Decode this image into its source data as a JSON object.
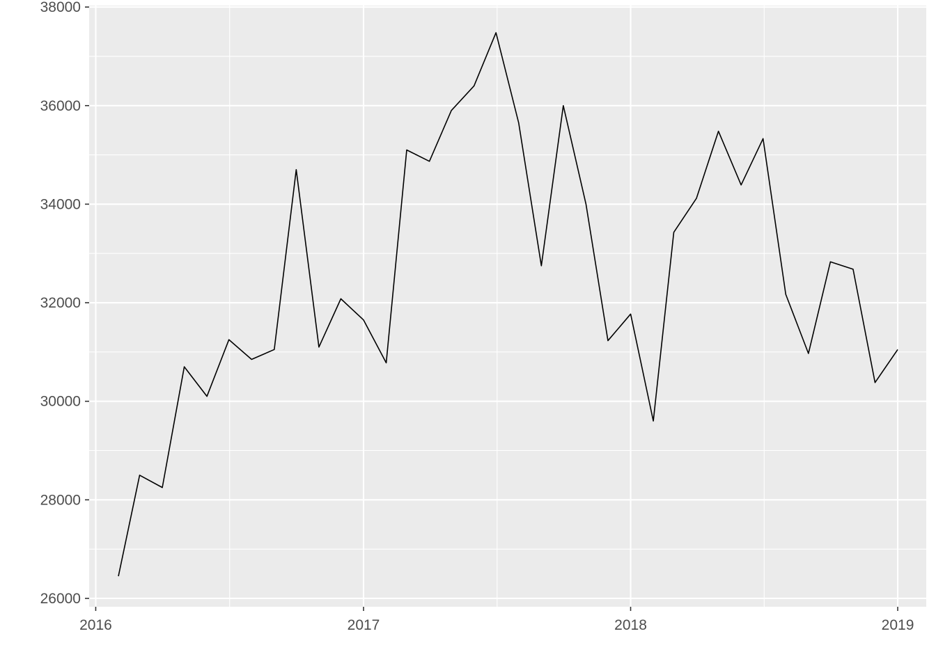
{
  "chart_data": {
    "type": "line",
    "title": "",
    "xlabel": "",
    "ylabel": "",
    "x": [
      "2016-02-01",
      "2016-03-01",
      "2016-04-01",
      "2016-05-01",
      "2016-06-01",
      "2016-07-01",
      "2016-08-01",
      "2016-09-01",
      "2016-10-01",
      "2016-11-01",
      "2016-12-01",
      "2017-01-01",
      "2017-02-01",
      "2017-03-01",
      "2017-04-01",
      "2017-05-01",
      "2017-06-01",
      "2017-07-01",
      "2017-08-01",
      "2017-09-01",
      "2017-10-01",
      "2017-11-01",
      "2017-12-01",
      "2018-01-01",
      "2018-02-01",
      "2018-03-01",
      "2018-04-01",
      "2018-05-01",
      "2018-06-01",
      "2018-07-01",
      "2018-08-01",
      "2018-09-01",
      "2018-10-01",
      "2018-11-01",
      "2018-12-01",
      "2019-01-01"
    ],
    "series": [
      {
        "values": [
          26450,
          28500,
          28250,
          30700,
          30100,
          31250,
          30850,
          31050,
          34700,
          31100,
          32080,
          31650,
          30780,
          35100,
          34870,
          35900,
          36400,
          37480,
          35650,
          32750,
          36000,
          34000,
          31230,
          31770,
          29600,
          33430,
          34120,
          35480,
          34390,
          35330,
          32170,
          30970,
          32830,
          32680,
          30380,
          31050
        ],
        "color": "#000000"
      }
    ],
    "xlim": [
      "2015-12-23",
      "2019-02-09"
    ],
    "ylim": [
      25830,
      38030
    ],
    "x_ticks": [
      "2016",
      "2017",
      "2018",
      "2019"
    ],
    "y_ticks": [
      "26000",
      "28000",
      "30000",
      "32000",
      "34000",
      "36000",
      "38000"
    ],
    "grid": true,
    "legend": "none",
    "panel_background": "#EBEBEB",
    "grid_color": "#FFFFFF",
    "tick_label_color": "#4D4D4D",
    "axis_tick_color": "#333333"
  }
}
